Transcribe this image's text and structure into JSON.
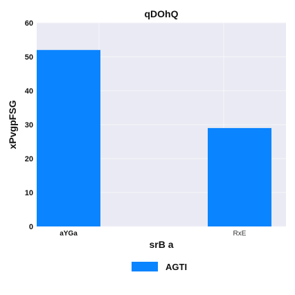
{
  "chart_data": {
    "type": "bar",
    "title": "qDOhQ",
    "xlabel": "srB a",
    "ylabel": "xPvgpFSG",
    "categories": [
      "aYGa",
      "RxE"
    ],
    "series": [
      {
        "name": "AGTI",
        "values": [
          52,
          29
        ],
        "color": "#0a84ff"
      }
    ],
    "ylim": [
      0,
      60
    ],
    "yticks": [
      0,
      10,
      20,
      30,
      40,
      50,
      60
    ],
    "grid": true,
    "legend_position": "bottom-center",
    "plot_background": "#e9eaf3",
    "grid_color": "#f7f7fb"
  }
}
